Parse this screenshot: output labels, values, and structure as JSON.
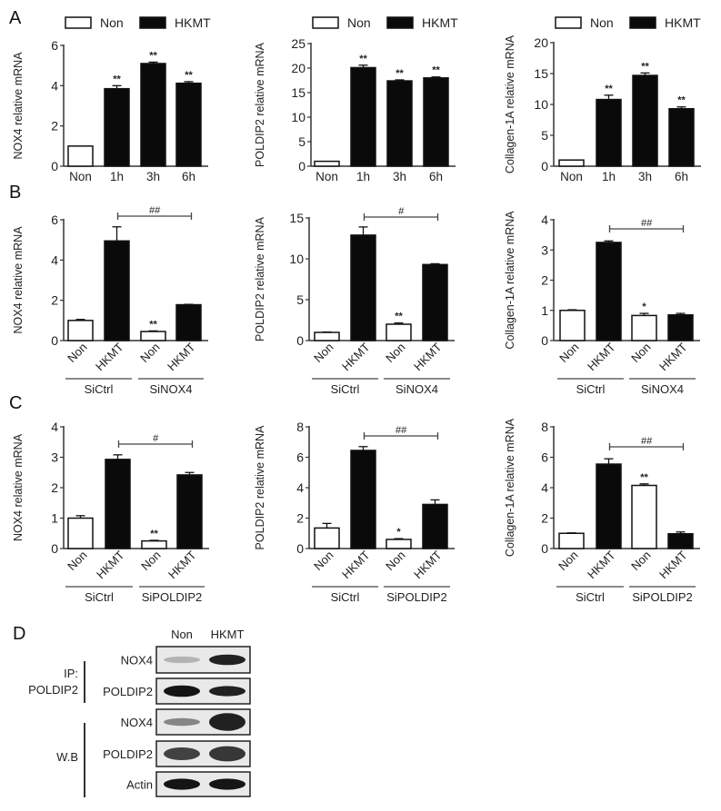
{
  "figure": {
    "panel_labels": [
      "A",
      "B",
      "C",
      "D"
    ],
    "legend": {
      "non_label": "Non",
      "hkmt_label": "HKMT"
    }
  },
  "chart_data": [
    {
      "id": "A1",
      "panel": "A",
      "type": "bar",
      "title": "",
      "xlabel": "",
      "ylabel": "NOX4 relative mRNA",
      "categories": [
        "Non",
        "1h",
        "3h",
        "6h"
      ],
      "values": [
        1.0,
        3.85,
        5.1,
        4.12
      ],
      "errors": [
        0.0,
        0.15,
        0.07,
        0.08
      ],
      "fills": [
        "white",
        "black",
        "black",
        "black"
      ],
      "annotations": [
        "",
        "**",
        "**",
        "**"
      ],
      "ylim": [
        0,
        6
      ],
      "yticks": [
        0,
        2,
        4,
        6
      ],
      "legend": [
        "Non",
        "HKMT"
      ],
      "legend_position": "top",
      "grid": false
    },
    {
      "id": "A2",
      "panel": "A",
      "type": "bar",
      "title": "",
      "xlabel": "",
      "ylabel": "POLDIP2 relative mRNA",
      "categories": [
        "Non",
        "1h",
        "3h",
        "6h"
      ],
      "values": [
        1.0,
        20.1,
        17.4,
        18.0
      ],
      "errors": [
        0.0,
        0.5,
        0.2,
        0.2
      ],
      "fills": [
        "white",
        "black",
        "black",
        "black"
      ],
      "annotations": [
        "",
        "**",
        "**",
        "**"
      ],
      "ylim": [
        0,
        25
      ],
      "yticks": [
        0,
        5,
        10,
        15,
        20,
        25
      ],
      "legend": [
        "Non",
        "HKMT"
      ],
      "legend_position": "top",
      "grid": false
    },
    {
      "id": "A3",
      "panel": "A",
      "type": "bar",
      "title": "",
      "xlabel": "",
      "ylabel": "Collagen-1A relative mRNA",
      "categories": [
        "Non",
        "1h",
        "3h",
        "6h"
      ],
      "values": [
        1.0,
        10.8,
        14.7,
        9.3
      ],
      "errors": [
        0.0,
        0.7,
        0.4,
        0.3
      ],
      "fills": [
        "white",
        "black",
        "black",
        "black"
      ],
      "annotations": [
        "",
        "**",
        "**",
        "**"
      ],
      "ylim": [
        0,
        20
      ],
      "yticks": [
        0,
        5,
        10,
        15,
        20
      ],
      "legend": [
        "Non",
        "HKMT"
      ],
      "legend_position": "top",
      "grid": false
    },
    {
      "id": "B1",
      "panel": "B",
      "type": "bar",
      "ylabel": "NOX4 relative mRNA",
      "categories": [
        "Non",
        "HKMT",
        "Non",
        "HKMT"
      ],
      "groups": [
        {
          "label": "SiCtrl",
          "span": [
            0,
            1
          ]
        },
        {
          "label": "SiNOX4",
          "span": [
            2,
            3
          ]
        }
      ],
      "values": [
        1.0,
        4.95,
        0.45,
        1.78
      ],
      "errors": [
        0.05,
        0.7,
        0.03,
        0.02
      ],
      "fills": [
        "white",
        "black",
        "white",
        "black"
      ],
      "annotations": [
        "",
        "",
        "**",
        ""
      ],
      "bracket": {
        "from": 1,
        "to": 3,
        "label": "##"
      },
      "ylim": [
        0,
        6
      ],
      "yticks": [
        0,
        2,
        4,
        6
      ],
      "grid": false
    },
    {
      "id": "B2",
      "panel": "B",
      "type": "bar",
      "ylabel": "POLDIP2 relative mRNA",
      "categories": [
        "Non",
        "HKMT",
        "Non",
        "HKMT"
      ],
      "groups": [
        {
          "label": "SiCtrl",
          "span": [
            0,
            1
          ]
        },
        {
          "label": "SiNOX4",
          "span": [
            2,
            3
          ]
        }
      ],
      "values": [
        1.0,
        12.9,
        2.0,
        9.3
      ],
      "errors": [
        0.05,
        1.0,
        0.15,
        0.1
      ],
      "fills": [
        "white",
        "black",
        "white",
        "black"
      ],
      "annotations": [
        "",
        "",
        "**",
        ""
      ],
      "bracket": {
        "from": 1,
        "to": 3,
        "label": "#"
      },
      "ylim": [
        0,
        15
      ],
      "yticks": [
        0,
        5,
        10,
        15
      ],
      "grid": false
    },
    {
      "id": "B3",
      "panel": "B",
      "type": "bar",
      "ylabel": "Collagen-1A relative mRNA",
      "categories": [
        "Non",
        "HKMT",
        "Non",
        "HKMT"
      ],
      "groups": [
        {
          "label": "SiCtrl",
          "span": [
            0,
            1
          ]
        },
        {
          "label": "SiNOX4",
          "span": [
            2,
            3
          ]
        }
      ],
      "values": [
        1.0,
        3.25,
        0.83,
        0.85
      ],
      "errors": [
        0.02,
        0.05,
        0.07,
        0.05
      ],
      "fills": [
        "white",
        "black",
        "white",
        "black"
      ],
      "annotations": [
        "",
        "",
        "*",
        ""
      ],
      "bracket": {
        "from": 1,
        "to": 3,
        "label": "##"
      },
      "ylim": [
        0,
        4
      ],
      "yticks": [
        0,
        1,
        2,
        3,
        4
      ],
      "grid": false
    },
    {
      "id": "C1",
      "panel": "C",
      "type": "bar",
      "ylabel": "NOX4 relative mRNA",
      "categories": [
        "Non",
        "HKMT",
        "Non",
        "HKMT"
      ],
      "groups": [
        {
          "label": "SiCtrl",
          "span": [
            0,
            1
          ]
        },
        {
          "label": "SiPOLDIP2",
          "span": [
            2,
            3
          ]
        }
      ],
      "values": [
        1.0,
        2.93,
        0.25,
        2.42
      ],
      "errors": [
        0.08,
        0.15,
        0.02,
        0.08
      ],
      "fills": [
        "white",
        "black",
        "white",
        "black"
      ],
      "annotations": [
        "",
        "",
        "**",
        ""
      ],
      "bracket": {
        "from": 1,
        "to": 3,
        "label": "#"
      },
      "ylim": [
        0,
        4
      ],
      "yticks": [
        0,
        1,
        2,
        3,
        4
      ],
      "grid": false
    },
    {
      "id": "C2",
      "panel": "C",
      "type": "bar",
      "ylabel": "POLDIP2 relative mRNA",
      "categories": [
        "Non",
        "HKMT",
        "Non",
        "HKMT"
      ],
      "groups": [
        {
          "label": "SiCtrl",
          "span": [
            0,
            1
          ]
        },
        {
          "label": "SiPOLDIP2",
          "span": [
            2,
            3
          ]
        }
      ],
      "values": [
        1.35,
        6.45,
        0.6,
        2.9
      ],
      "errors": [
        0.3,
        0.25,
        0.05,
        0.3
      ],
      "fills": [
        "white",
        "black",
        "white",
        "black"
      ],
      "annotations": [
        "",
        "",
        "*",
        ""
      ],
      "bracket": {
        "from": 1,
        "to": 3,
        "label": "##"
      },
      "ylim": [
        0,
        8
      ],
      "yticks": [
        0,
        2,
        4,
        6,
        8
      ],
      "grid": false
    },
    {
      "id": "C3",
      "panel": "C",
      "type": "bar",
      "ylabel": "Collagen-1A relative mRNA",
      "categories": [
        "Non",
        "HKMT",
        "Non",
        "HKMT"
      ],
      "groups": [
        {
          "label": "SiCtrl",
          "span": [
            0,
            1
          ]
        },
        {
          "label": "SiPOLDIP2",
          "span": [
            2,
            3
          ]
        }
      ],
      "values": [
        1.0,
        5.55,
        4.15,
        0.97
      ],
      "errors": [
        0.03,
        0.35,
        0.1,
        0.12
      ],
      "fills": [
        "white",
        "black",
        "white",
        "black"
      ],
      "annotations": [
        "",
        "",
        "**",
        ""
      ],
      "bracket": {
        "from": 1,
        "to": 3,
        "label": "##"
      },
      "ylim": [
        0,
        8
      ],
      "yticks": [
        0,
        2,
        4,
        6,
        8
      ],
      "grid": false
    }
  ],
  "western_blot": {
    "panel": "D",
    "lanes": [
      "Non",
      "HKMT"
    ],
    "sections": [
      {
        "label_line1": "IP:",
        "label_line2": "POLDIP2",
        "rows": [
          0,
          1
        ]
      },
      {
        "label_line1": "W.B",
        "label_line2": "",
        "rows": [
          2,
          3,
          4
        ]
      }
    ],
    "rows": [
      {
        "protein": "NOX4",
        "band_intensity": [
          0.25,
          0.9
        ],
        "band_thickness": [
          0.25,
          0.4
        ]
      },
      {
        "protein": "POLDIP2",
        "band_intensity": [
          0.95,
          0.9
        ],
        "band_thickness": [
          0.45,
          0.4
        ]
      },
      {
        "protein": "NOX4",
        "band_intensity": [
          0.45,
          0.9
        ],
        "band_thickness": [
          0.3,
          0.7
        ]
      },
      {
        "protein": "POLDIP2",
        "band_intensity": [
          0.75,
          0.8
        ],
        "band_thickness": [
          0.5,
          0.6
        ]
      },
      {
        "protein": "Actin",
        "band_intensity": [
          0.95,
          0.95
        ],
        "band_thickness": [
          0.45,
          0.45
        ]
      }
    ]
  }
}
